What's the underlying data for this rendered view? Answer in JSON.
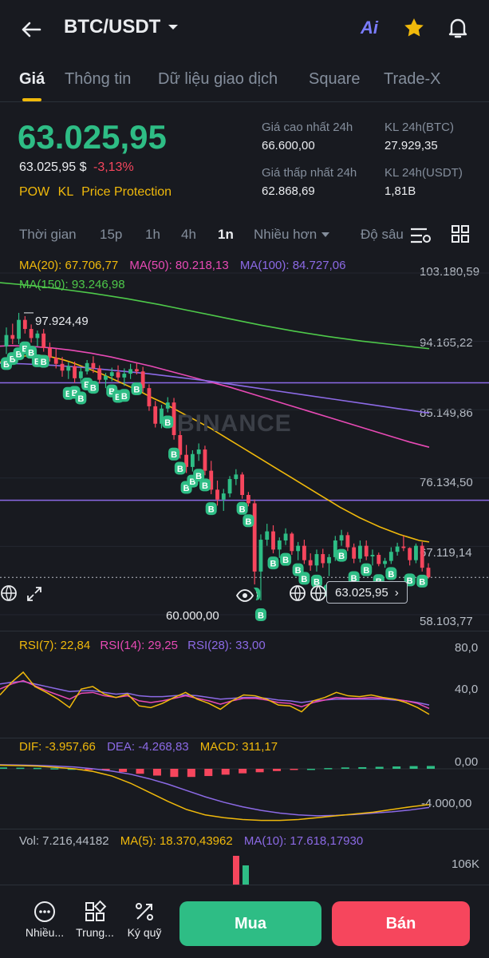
{
  "header": {
    "pair": "BTC/USDT",
    "ai_label": "Ai"
  },
  "tabs": [
    {
      "label": "Giá"
    },
    {
      "label": "Thông tin"
    },
    {
      "label": "Dữ liệu giao dịch"
    },
    {
      "label": "Square"
    },
    {
      "label": "Trade-X"
    }
  ],
  "price": {
    "last": "63.025,95",
    "usd": "63.025,95 $",
    "change": "-3,13%",
    "tags": [
      "POW",
      "KL",
      "Price Protection"
    ]
  },
  "stats": {
    "high_label": "Giá cao nhất 24h",
    "high": "66.600,00",
    "low_label": "Giá thấp nhất 24h",
    "low": "62.868,69",
    "vol_btc_label": "KL 24h(BTC)",
    "vol_btc": "27.929,35",
    "vol_usdt_label": "KL 24h(USDT)",
    "vol_usdt": "1,81B"
  },
  "timeframes": [
    "Thời gian",
    "15p",
    "1h",
    "4h",
    "1n",
    "Nhiều hơn",
    "Độ sâu"
  ],
  "ma": {
    "ma20": "MA(20): 67.706,77",
    "ma50": "MA(50): 80.218,13",
    "ma100": "MA(100): 84.727,06",
    "ma150": "MA(150): 93.246,98"
  },
  "chart_data": {
    "type": "candlestick",
    "price_axis": [
      "103.180,59",
      "94.165,22",
      "85.149,86",
      "76.134,50",
      "67.119,14",
      "58.103,77"
    ],
    "ylim": [
      58103.77,
      103180.59
    ],
    "high_label": "97.924,49",
    "low_label": "60.000,00",
    "current_price_label": "63.025,95",
    "watermark": "BINANCE",
    "ohlc": [
      [
        93500,
        96000,
        92500,
        95000
      ],
      [
        95000,
        96500,
        93800,
        94500
      ],
      [
        94500,
        97924,
        93800,
        97000
      ],
      [
        97000,
        97500,
        95200,
        95800
      ],
      [
        95800,
        96400,
        94000,
        94600
      ],
      [
        94600,
        95600,
        93500,
        95200
      ],
      [
        95200,
        95800,
        92800,
        93300
      ],
      [
        93300,
        94000,
        91500,
        92000
      ],
      [
        92000,
        93200,
        90600,
        91200
      ],
      [
        91200,
        92100,
        89500,
        90300
      ],
      [
        90300,
        91400,
        89200,
        90900
      ],
      [
        90900,
        91500,
        88700,
        89300
      ],
      [
        89300,
        90700,
        88600,
        90200
      ],
      [
        90200,
        91700,
        89800,
        91300
      ],
      [
        91300,
        92200,
        90000,
        90600
      ],
      [
        90600,
        91000,
        88600,
        89100
      ],
      [
        89100,
        90000,
        88000,
        89600
      ],
      [
        89600,
        90700,
        88900,
        90100
      ],
      [
        90100,
        91000,
        88800,
        89400
      ],
      [
        89400,
        90600,
        88300,
        89900
      ],
      [
        89900,
        91200,
        89200,
        90500
      ],
      [
        90500,
        91300,
        89800,
        90200
      ],
      [
        90200,
        90800,
        87500,
        88000
      ],
      [
        88000,
        88500,
        85000,
        85600
      ],
      [
        85600,
        86300,
        82800,
        83300
      ],
      [
        83300,
        85800,
        82700,
        85300
      ],
      [
        85300,
        86800,
        84800,
        86100
      ],
      [
        86100,
        86700,
        81200,
        81800
      ],
      [
        81800,
        82400,
        78700,
        79200
      ],
      [
        79200,
        80500,
        76800,
        77600
      ],
      [
        77600,
        79800,
        77000,
        79300
      ],
      [
        79300,
        80700,
        78400,
        79900
      ],
      [
        79900,
        80400,
        76500,
        77100
      ],
      [
        77100,
        78400,
        74000,
        74600
      ],
      [
        74600,
        75800,
        72500,
        73300
      ],
      [
        73300,
        74700,
        71800,
        74100
      ],
      [
        74100,
        76400,
        73600,
        76000
      ],
      [
        76000,
        77300,
        75200,
        76600
      ],
      [
        76600,
        76900,
        73400,
        73900
      ],
      [
        73900,
        74300,
        72400,
        72800
      ],
      [
        72800,
        73300,
        62100,
        63800
      ],
      [
        63800,
        68700,
        60000,
        68000
      ],
      [
        68000,
        70100,
        67200,
        69100
      ],
      [
        69100,
        69900,
        66200,
        66700
      ],
      [
        66700,
        68300,
        65600,
        67900
      ],
      [
        67900,
        69500,
        67300,
        68800
      ],
      [
        68800,
        69000,
        66000,
        66500
      ],
      [
        66500,
        67700,
        65300,
        67200
      ],
      [
        67200,
        68000,
        64800,
        65300
      ],
      [
        65300,
        66200,
        63900,
        64600
      ],
      [
        64600,
        66700,
        63800,
        66100
      ],
      [
        66100,
        66800,
        64300,
        64900
      ],
      [
        64900,
        66100,
        63200,
        65700
      ],
      [
        65700,
        68500,
        65200,
        67900
      ],
      [
        67900,
        69300,
        67200,
        68600
      ],
      [
        68600,
        69000,
        66500,
        67000
      ],
      [
        67000,
        67500,
        64900,
        65500
      ],
      [
        65500,
        67900,
        65000,
        67200
      ],
      [
        67200,
        67900,
        65300,
        65800
      ],
      [
        65800,
        66700,
        64600,
        66000
      ],
      [
        66000,
        66300,
        64500,
        64800
      ],
      [
        64800,
        65600,
        64300,
        65200
      ],
      [
        65200,
        67000,
        64800,
        66400
      ],
      [
        66400,
        67600,
        65900,
        67100
      ],
      [
        67100,
        68500,
        66500,
        66900
      ],
      [
        66900,
        67000,
        64600,
        65300
      ],
      [
        65300,
        67500,
        64900,
        67200
      ],
      [
        67200,
        67700,
        63800,
        64300
      ],
      [
        64300,
        64900,
        62868,
        63026
      ]
    ],
    "series": [
      {
        "name": "MA(20)",
        "color": "#f0b90b",
        "values": [
          91000,
          91500,
          91900,
          92200,
          92300,
          92300,
          92100,
          91800,
          91400,
          90900,
          90400,
          89900,
          89300,
          88700,
          88100,
          87500,
          86800,
          86200,
          85500,
          84800,
          84100,
          83400,
          82700,
          81900,
          81100,
          80300,
          79500,
          78700,
          77900,
          77100,
          76300,
          75500,
          74700,
          73900,
          73100,
          72300,
          71600,
          70900,
          70300,
          69700,
          69200,
          68700,
          68300,
          67900,
          67700
        ]
      },
      {
        "name": "MA(50)",
        "color": "#e84ab5",
        "values": [
          93500,
          93600,
          93500,
          93300,
          93000,
          92600,
          92100,
          91500,
          90900,
          90200,
          89500,
          88800,
          88100,
          87300,
          86500,
          85700,
          84900,
          84100,
          83300,
          82500,
          81700,
          80900,
          80200
        ]
      },
      {
        "name": "MA(100)",
        "color": "#8c6ae6",
        "values": [
          91300,
          91200,
          91000,
          90700,
          90300,
          89900,
          89400,
          88900,
          88300,
          87700,
          87100,
          86500,
          85900,
          85300,
          84700
        ]
      },
      {
        "name": "MA(150)",
        "color": "#4ec94a",
        "values": [
          102000,
          101600,
          101100,
          100500,
          99800,
          99000,
          98100,
          97200,
          96300,
          95500,
          94800,
          94200,
          93700,
          93200
        ]
      }
    ]
  },
  "rsi": {
    "rsi7": "RSI(7): 22,84",
    "rsi14": "RSI(14): 29,25",
    "rsi28": "RSI(28): 33,00",
    "axis": [
      "80,0",
      "40,0"
    ],
    "rsi7_values": [
      45,
      60,
      72,
      55,
      48,
      40,
      30,
      52,
      55,
      46,
      42,
      46,
      32,
      30,
      35,
      42,
      48,
      40,
      35,
      28,
      38,
      45,
      44,
      40,
      33,
      32,
      25,
      38,
      42,
      48,
      44,
      43,
      45,
      42,
      40,
      36,
      30,
      22
    ],
    "rsi14_values": [
      52,
      58,
      62,
      56,
      50,
      45,
      40,
      47,
      48,
      44,
      42,
      44,
      38,
      36,
      38,
      41,
      44,
      41,
      38,
      34,
      38,
      41,
      41,
      39,
      36,
      35,
      31,
      36,
      39,
      42,
      41,
      41,
      42,
      41,
      40,
      38,
      35,
      29
    ],
    "rsi28_values": [
      58,
      60,
      61,
      58,
      55,
      52,
      49,
      50,
      50,
      48,
      46,
      47,
      44,
      43,
      43,
      44,
      45,
      44,
      42,
      40,
      41,
      42,
      42,
      41,
      39,
      38,
      36,
      38,
      39,
      40,
      40,
      40,
      40,
      40,
      39,
      38,
      36,
      33
    ]
  },
  "macd": {
    "dif": "DIF: -3.957,66",
    "dea": "DEA: -4.268,83",
    "macd": "MACD: 311,17",
    "axis": [
      "0,00",
      "-4.000,00"
    ],
    "dif_values": [
      400,
      350,
      300,
      150,
      0,
      -300,
      -800,
      -1600,
      -2600,
      -3600,
      -4500,
      -5100,
      -5400,
      -5600,
      -5700,
      -5700,
      -5600,
      -5400,
      -5200,
      -5000,
      -4800,
      -4500,
      -4200,
      -3950
    ],
    "dea_values": [
      450,
      420,
      380,
      300,
      200,
      0,
      -250,
      -600,
      -1100,
      -1700,
      -2400,
      -3100,
      -3700,
      -4200,
      -4600,
      -4900,
      -5100,
      -5200,
      -5150,
      -5050,
      -4900,
      -4750,
      -4550,
      -4270
    ],
    "hist_values": [
      150,
      120,
      100,
      60,
      20,
      -60,
      -150,
      -350,
      -550,
      -750,
      -900,
      -900,
      -800,
      -650,
      -500,
      -380,
      -250,
      -120,
      0,
      80,
      150,
      180,
      220,
      260,
      300,
      311
    ]
  },
  "volume": {
    "vol": "Vol: 7.216,44182",
    "ma5": "MA(5): 18.370,43962",
    "ma10": "MA(10): 17.618,17930",
    "axis": "106K"
  },
  "bottom_bar": {
    "more": "Nhiều...",
    "center": "Trung...",
    "margin": "Ký quỹ",
    "buy": "Mua",
    "sell": "Bán"
  },
  "colors": {
    "up": "#2ebd85",
    "down": "#f6465d",
    "accent": "#f0b90b",
    "bg": "#181a20"
  }
}
